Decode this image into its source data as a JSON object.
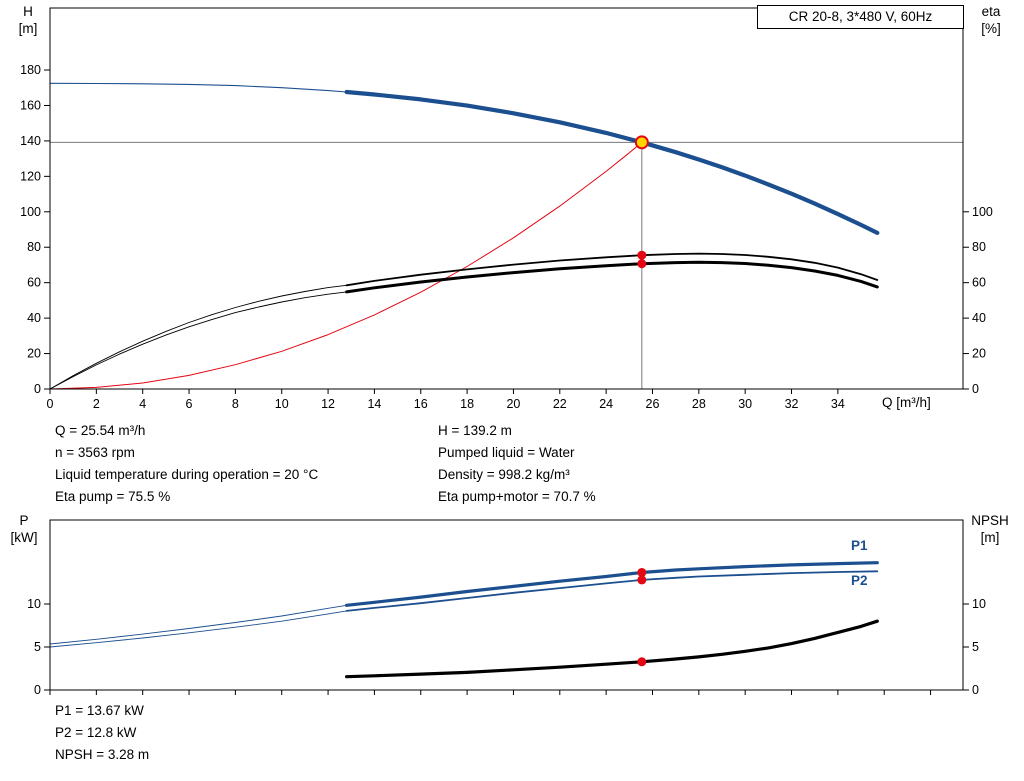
{
  "title_box": "CR 20-8, 3*480 V, 60Hz",
  "axes_titles": {
    "h": "H",
    "h_unit": "[m]",
    "eta": "eta",
    "eta_unit": "[%]",
    "p": "P",
    "p_unit": "[kW]",
    "npsh": "NPSH",
    "npsh_unit": "[m]",
    "q": "Q [m³/h]"
  },
  "curve_labels": {
    "p1": "P1",
    "p2": "P2"
  },
  "results_top": {
    "col1": [
      "Q = 25.54 m³/h",
      "n = 3563 rpm",
      "Liquid temperature during operation = 20 °C",
      "Eta pump = 75.5 %"
    ],
    "col2": [
      "H = 139.2 m",
      "Pumped liquid = Water",
      "Density = 998.2 kg/m³",
      "Eta pump+motor = 70.7 %"
    ]
  },
  "results_bottom": [
    "P1 = 13.67 kW",
    "P2 = 12.8 kW",
    "NPSH = 3.28 m"
  ],
  "colors": {
    "blue": "#1c4f8f",
    "black": "#000000",
    "red": "#e30613",
    "yellow": "#ffd500",
    "gray": "#7a7a7a"
  },
  "chart_data": [
    {
      "id": "performance",
      "type": "line",
      "title": "CR 20-8, 3*480 V, 60Hz",
      "x": {
        "label": "Q [m³/h]",
        "lim": [
          0,
          39.4
        ],
        "ticks": [
          0,
          2,
          4,
          6,
          8,
          10,
          12,
          14,
          16,
          18,
          20,
          22,
          24,
          26,
          28,
          30,
          32,
          34
        ],
        "labels": true
      },
      "y_left": {
        "label": "H [m]",
        "lim": [
          0,
          215
        ],
        "ticks": [
          0,
          20,
          40,
          60,
          80,
          100,
          120,
          140,
          160,
          180
        ]
      },
      "y_right": {
        "label": "eta [%]",
        "lim": [
          0,
          215
        ],
        "ticks": [
          0,
          20,
          40,
          60,
          80,
          100
        ]
      },
      "crosshair": {
        "Q": 25.54,
        "value": 139.2
      },
      "duty_point": {
        "Q": 25.54,
        "H": 139.2,
        "eta_pump": 75.5,
        "eta_pump_motor": 70.7,
        "n_rpm": 3563
      },
      "series": [
        {
          "name": "system-curve",
          "color": "red",
          "width": 1,
          "points": [
            [
              0,
              0
            ],
            [
              2,
              0.9
            ],
            [
              4,
              3.4
            ],
            [
              6,
              7.7
            ],
            [
              8,
              13.7
            ],
            [
              10,
              21.3
            ],
            [
              12,
              30.7
            ],
            [
              14,
              41.8
            ],
            [
              16,
              54.6
            ],
            [
              18,
              69.1
            ],
            [
              20,
              85.3
            ],
            [
              22,
              103.2
            ],
            [
              24,
              122.8
            ],
            [
              25,
              133.3
            ],
            [
              25.54,
              139.2
            ]
          ]
        },
        {
          "name": "eta-pump-thin",
          "color": "black",
          "width": 0.9,
          "points": [
            [
              0,
              0
            ],
            [
              1,
              7.5
            ],
            [
              2,
              14.5
            ],
            [
              3,
              21
            ],
            [
              4,
              27
            ],
            [
              5,
              32.5
            ],
            [
              6,
              37.5
            ],
            [
              7,
              42
            ],
            [
              8,
              46
            ],
            [
              9,
              49.5
            ],
            [
              10,
              52.5
            ],
            [
              11,
              55
            ],
            [
              12,
              57.2
            ],
            [
              12.8,
              58.5
            ]
          ]
        },
        {
          "name": "eta-pump-motor-thin",
          "color": "black",
          "width": 0.9,
          "points": [
            [
              0,
              0
            ],
            [
              1,
              7
            ],
            [
              2,
              13.6
            ],
            [
              3,
              19.7
            ],
            [
              4,
              25.3
            ],
            [
              5,
              30.4
            ],
            [
              6,
              35.1
            ],
            [
              7,
              39.3
            ],
            [
              8,
              43.1
            ],
            [
              9,
              46.3
            ],
            [
              10,
              49.1
            ],
            [
              11,
              51.5
            ],
            [
              12,
              53.5
            ],
            [
              12.8,
              54.8
            ]
          ]
        },
        {
          "name": "eta-pump-thick",
          "color": "black",
          "width": 1.8,
          "points": [
            [
              12.8,
              58.5
            ],
            [
              14,
              61
            ],
            [
              16,
              64.5
            ],
            [
              18,
              67.5
            ],
            [
              20,
              70.2
            ],
            [
              22,
              72.5
            ],
            [
              24,
              74.3
            ],
            [
              25.54,
              75.5
            ],
            [
              27,
              76.2
            ],
            [
              28,
              76.4
            ],
            [
              29,
              76.2
            ],
            [
              30,
              75.6
            ],
            [
              31,
              74.6
            ],
            [
              32,
              73.2
            ],
            [
              33,
              71.2
            ],
            [
              34,
              68.5
            ],
            [
              35,
              64.8
            ],
            [
              35.7,
              61.5
            ]
          ]
        },
        {
          "name": "eta-pump-motor-thick",
          "color": "black",
          "width": 3,
          "points": [
            [
              12.8,
              54.8
            ],
            [
              14,
              57.1
            ],
            [
              16,
              60.4
            ],
            [
              18,
              63.2
            ],
            [
              20,
              65.7
            ],
            [
              22,
              67.9
            ],
            [
              24,
              69.5
            ],
            [
              25.54,
              70.7
            ],
            [
              27,
              71.3
            ],
            [
              28,
              71.5
            ],
            [
              29,
              71.3
            ],
            [
              30,
              70.8
            ],
            [
              31,
              69.8
            ],
            [
              32,
              68.5
            ],
            [
              33,
              66.6
            ],
            [
              34,
              64.1
            ],
            [
              35,
              60.7
            ],
            [
              35.7,
              57.6
            ]
          ]
        },
        {
          "name": "head-curve-thin",
          "color": "blue",
          "width": 1.1,
          "points": [
            [
              0,
              172.5
            ],
            [
              2,
              172.4
            ],
            [
              4,
              172.2
            ],
            [
              6,
              171.9
            ],
            [
              8,
              171.2
            ],
            [
              10,
              170.0
            ],
            [
              12,
              168.4
            ],
            [
              12.8,
              167.6
            ]
          ]
        },
        {
          "name": "head-curve-thick",
          "color": "blue",
          "width": 4.2,
          "points": [
            [
              12.8,
              167.6
            ],
            [
              14,
              166.2
            ],
            [
              16,
              163.4
            ],
            [
              18,
              159.9
            ],
            [
              20,
              155.6
            ],
            [
              22,
              150.5
            ],
            [
              24,
              144.5
            ],
            [
              25.54,
              139.2
            ],
            [
              27,
              133.6
            ],
            [
              28,
              129.5
            ],
            [
              29,
              125.1
            ],
            [
              30,
              120.4
            ],
            [
              31,
              115.4
            ],
            [
              32,
              110.2
            ],
            [
              33,
              104.6
            ],
            [
              34,
              98.7
            ],
            [
              35,
              92.6
            ],
            [
              35.7,
              88.1
            ]
          ]
        }
      ],
      "markers": [
        {
          "name": "duty-point",
          "Q": 25.54,
          "value": 139.2,
          "type": "duty"
        },
        {
          "name": "eta-pump-point",
          "Q": 25.54,
          "value": 75.5,
          "type": "dot"
        },
        {
          "name": "eta-pump-motor-point",
          "Q": 25.54,
          "value": 70.7,
          "type": "dot"
        }
      ]
    },
    {
      "id": "power-npsh",
      "type": "line",
      "x": {
        "label": "",
        "lim": [
          0,
          39.4
        ],
        "ticks": [
          0,
          2,
          4,
          6,
          8,
          10,
          12,
          14,
          16,
          18,
          20,
          22,
          24,
          26,
          28,
          30,
          32,
          34,
          36,
          38
        ],
        "labels": false
      },
      "y_left": {
        "label": "P [kW]",
        "lim": [
          0,
          19.77
        ],
        "ticks": [
          0,
          5,
          10
        ]
      },
      "y_right": {
        "label": "NPSH [m]",
        "lim": [
          0,
          19.77
        ],
        "ticks": [
          0,
          5,
          10
        ]
      },
      "duty_point": {
        "Q": 25.54,
        "P1_kW": 13.67,
        "P2_kW": 12.8,
        "NPSH_m": 3.28
      },
      "series": [
        {
          "name": "p1-thin",
          "color": "blue",
          "width": 0.9,
          "points": [
            [
              0,
              5.35
            ],
            [
              2,
              5.9
            ],
            [
              4,
              6.5
            ],
            [
              6,
              7.15
            ],
            [
              8,
              7.85
            ],
            [
              10,
              8.6
            ],
            [
              12,
              9.5
            ],
            [
              12.8,
              9.85
            ]
          ]
        },
        {
          "name": "p2-thin",
          "color": "blue",
          "width": 0.9,
          "points": [
            [
              0,
              5.0
            ],
            [
              2,
              5.5
            ],
            [
              4,
              6.05
            ],
            [
              6,
              6.65
            ],
            [
              8,
              7.3
            ],
            [
              10,
              8.0
            ],
            [
              12,
              8.85
            ],
            [
              12.8,
              9.2
            ]
          ]
        },
        {
          "name": "p1-thick",
          "color": "blue",
          "width": 3.2,
          "points": [
            [
              12.8,
              9.85
            ],
            [
              14,
              10.2
            ],
            [
              16,
              10.8
            ],
            [
              18,
              11.45
            ],
            [
              20,
              12.05
            ],
            [
              22,
              12.65
            ],
            [
              24,
              13.2
            ],
            [
              25.54,
              13.67
            ],
            [
              27,
              13.95
            ],
            [
              28,
              14.1
            ],
            [
              30,
              14.35
            ],
            [
              32,
              14.55
            ],
            [
              34,
              14.7
            ],
            [
              35.7,
              14.8
            ]
          ]
        },
        {
          "name": "p2-thick",
          "color": "blue",
          "width": 1.8,
          "points": [
            [
              12.8,
              9.2
            ],
            [
              14,
              9.55
            ],
            [
              16,
              10.1
            ],
            [
              18,
              10.7
            ],
            [
              20,
              11.3
            ],
            [
              22,
              11.85
            ],
            [
              24,
              12.4
            ],
            [
              25.54,
              12.8
            ],
            [
              27,
              13.05
            ],
            [
              28,
              13.2
            ],
            [
              30,
              13.4
            ],
            [
              32,
              13.6
            ],
            [
              34,
              13.72
            ],
            [
              35.7,
              13.8
            ]
          ]
        },
        {
          "name": "npsh-curve",
          "color": "black",
          "width": 3.2,
          "points": [
            [
              12.8,
              1.55
            ],
            [
              14,
              1.65
            ],
            [
              16,
              1.85
            ],
            [
              18,
              2.05
            ],
            [
              20,
              2.35
            ],
            [
              22,
              2.65
            ],
            [
              24,
              3.0
            ],
            [
              25.54,
              3.28
            ],
            [
              27,
              3.6
            ],
            [
              28,
              3.85
            ],
            [
              29,
              4.15
            ],
            [
              30,
              4.5
            ],
            [
              31,
              4.9
            ],
            [
              32,
              5.4
            ],
            [
              33,
              6.0
            ],
            [
              34,
              6.7
            ],
            [
              35,
              7.4
            ],
            [
              35.7,
              8.0
            ]
          ]
        }
      ],
      "markers": [
        {
          "name": "p1-point",
          "Q": 25.54,
          "value": 13.67,
          "type": "dot"
        },
        {
          "name": "p2-point",
          "Q": 25.54,
          "value": 12.8,
          "type": "dot"
        },
        {
          "name": "npsh-point",
          "Q": 25.54,
          "value": 3.28,
          "type": "dot"
        }
      ]
    }
  ]
}
